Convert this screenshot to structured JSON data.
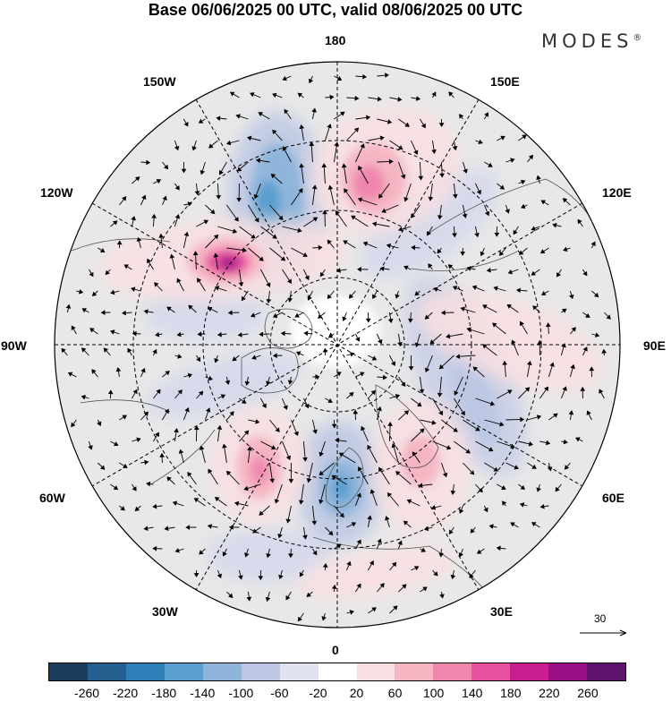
{
  "title": "Base 06/06/2025 00 UTC, valid 08/06/2025 00 UTC",
  "brand": "MODES",
  "brand_mark": "®",
  "longitude_labels": [
    "180",
    "150E",
    "120E",
    "90E",
    "60E",
    "30E",
    "0",
    "30W",
    "60W",
    "90W",
    "120W",
    "150W"
  ],
  "reference_vector": "30",
  "colorbar": {
    "colors": [
      "#1b3d5c",
      "#245f8f",
      "#2d7fb8",
      "#5a9fd0",
      "#8fb5db",
      "#bcc7e4",
      "#e1e2f1",
      "#ffffff",
      "#f9dfe1",
      "#f5b5c3",
      "#ef86ae",
      "#e6509e",
      "#c71f8f",
      "#9a0f86",
      "#5e136f"
    ],
    "ticks": [
      "-260",
      "-220",
      "-180",
      "-140",
      "-100",
      "-60",
      "-20",
      "20",
      "60",
      "100",
      "140",
      "180",
      "220",
      "260"
    ]
  },
  "anomaly_colors": {
    "positive": "#ef86ae",
    "negative": "#5a9fd0",
    "background": "#e8e8e8"
  }
}
